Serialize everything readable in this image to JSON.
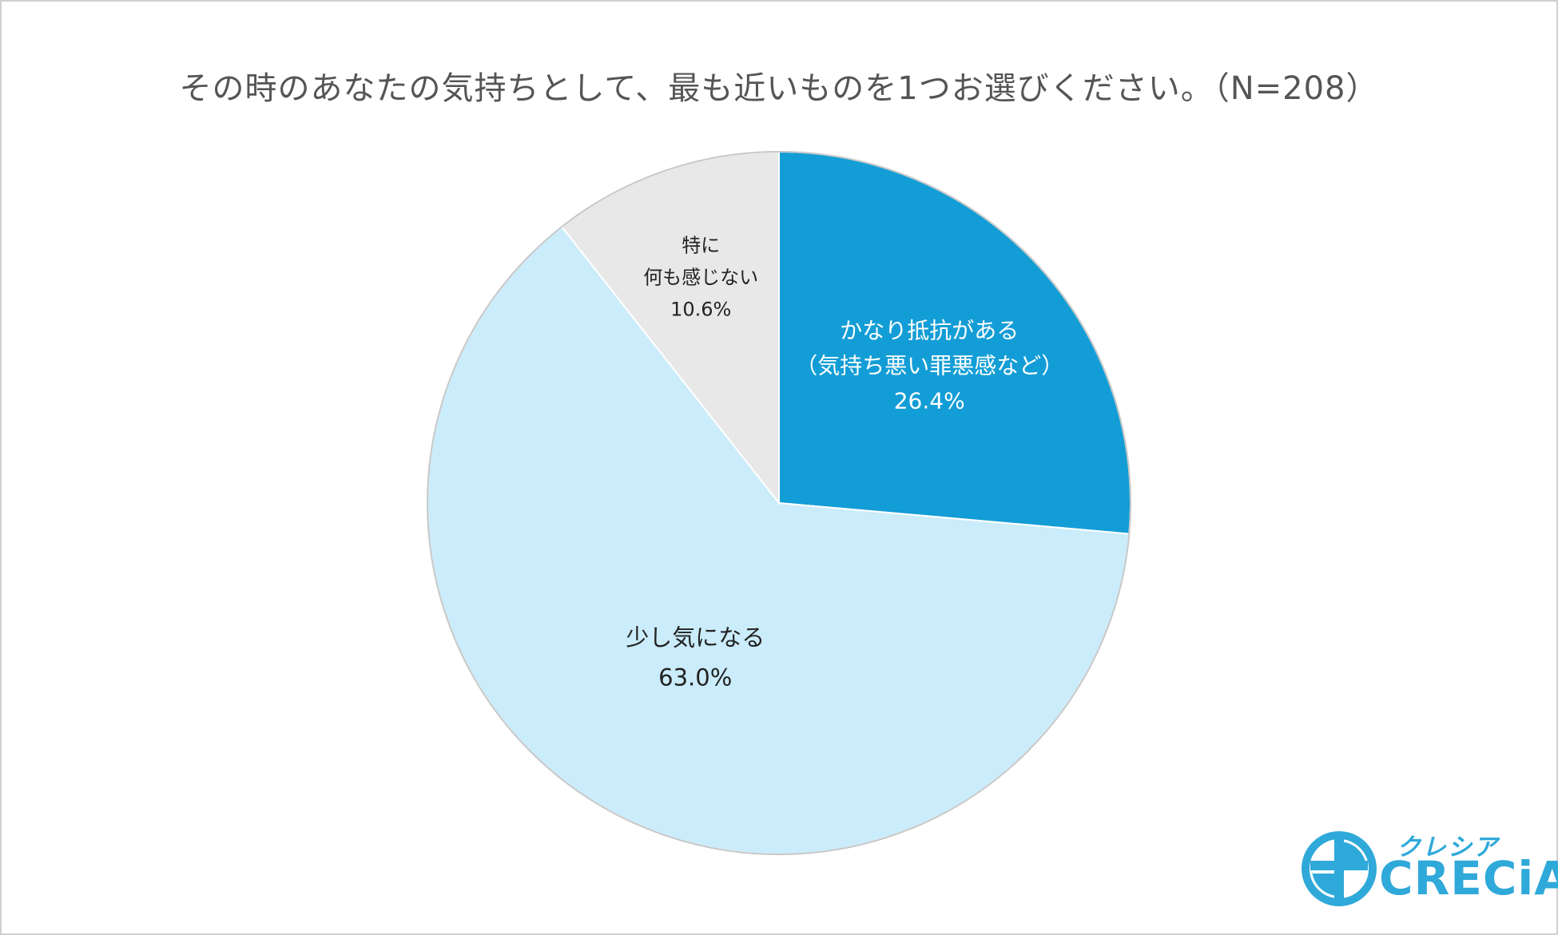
{
  "chart_data": {
    "type": "pie",
    "title": "その時のあなたの気持ちとして、最も近いものを1つお選びください。（N=208）",
    "start_angle_deg": 0,
    "direction": "clockwise",
    "slices": [
      {
        "label_lines": [
          "かなり抵抗がある",
          "（気持ち悪い罪悪感など）"
        ],
        "value": 26.4,
        "value_label": "26.4%",
        "color": "#139dd6",
        "text_color": "#ffffff"
      },
      {
        "label_lines": [
          "少し気になる"
        ],
        "value": 63.0,
        "value_label": "63.0%",
        "color": "#cbecfa",
        "text_color": "#222222"
      },
      {
        "label_lines": [
          "特に",
          "何も感じない"
        ],
        "value": 10.6,
        "value_label": "10.6%",
        "color": "#e8e8e8",
        "text_color": "#222222"
      }
    ],
    "border_color": "#c8c8c8"
  },
  "logo": {
    "kana": "クレシア",
    "name": "CRECiA",
    "color": "#2fa9d9"
  }
}
